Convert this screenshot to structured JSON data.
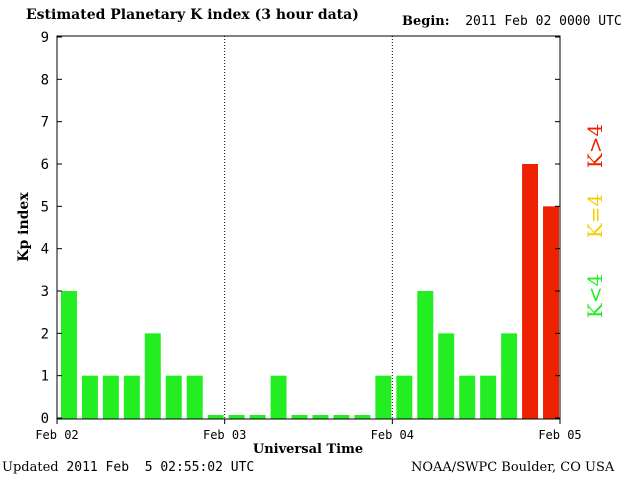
{
  "header": {
    "title": "Estimated Planetary K index (3 hour data)",
    "begin_label": "Begin:",
    "begin_value": "2011 Feb 02 0000 UTC"
  },
  "footer": {
    "updated_label": "Updated",
    "updated_value": "2011 Feb  5 02:55:02 UTC",
    "source": "NOAA/SWPC Boulder, CO USA"
  },
  "colors": {
    "low": "#22ee22",
    "storm": "#ee2200",
    "equal": "#f2d000"
  },
  "chart_data": {
    "type": "bar",
    "title": "Estimated Planetary K index (3 hour data)",
    "xlabel": "Universal Time",
    "ylabel": "Kp index",
    "ylim": [
      0,
      9
    ],
    "yticks": [
      "0",
      "1",
      "2",
      "3",
      "4",
      "5",
      "6",
      "7",
      "8",
      "9"
    ],
    "xticks": [
      "Feb 02",
      "Feb 03",
      "Feb 04",
      "Feb 05"
    ],
    "grid": "dotted vertical lines at day boundaries",
    "legend": [
      {
        "text": "K<4",
        "color": "#22ee22"
      },
      {
        "text": "K=4",
        "color": "#f2d000"
      },
      {
        "text": "K>4",
        "color": "#ee2200"
      }
    ],
    "values": [
      3,
      1,
      1,
      1,
      2,
      1,
      1,
      0,
      0,
      0,
      1,
      0,
      0,
      0,
      0,
      1,
      1,
      3,
      2,
      1,
      1,
      2,
      6,
      5
    ]
  }
}
